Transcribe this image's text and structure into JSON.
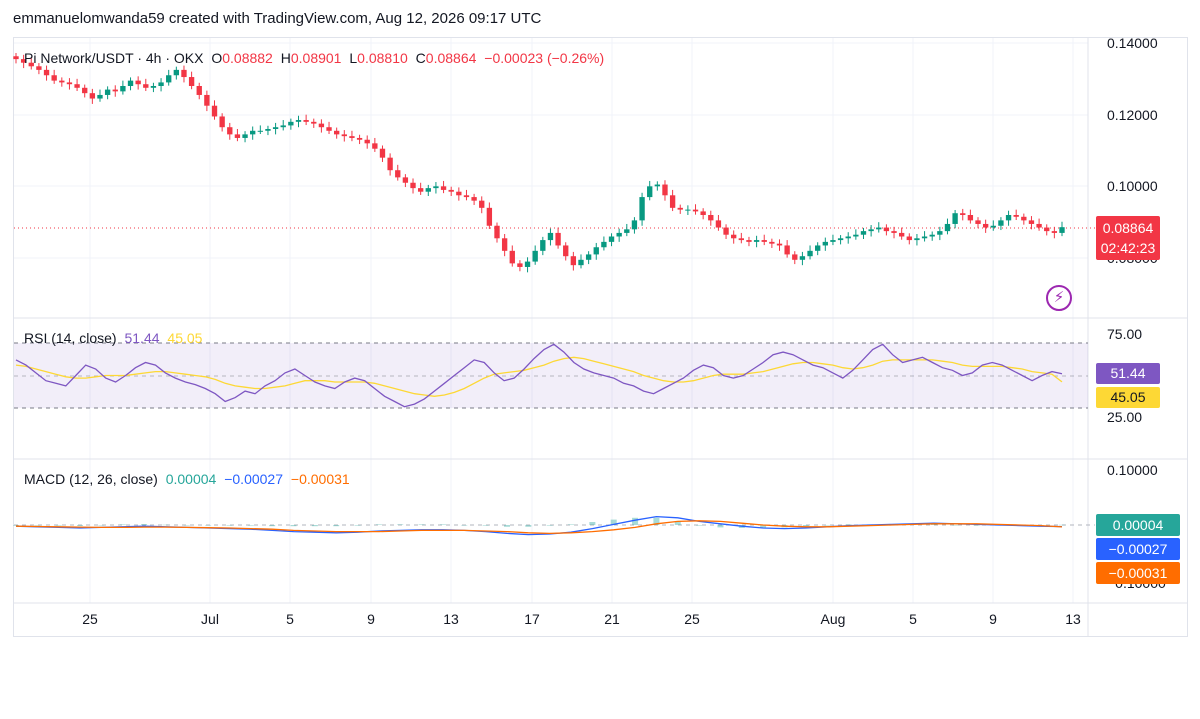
{
  "header": "emmanuelomwanda59 created with TradingView.com, Aug 12, 2026 09:17 UTC",
  "legend_main": {
    "symbol": "Pi Network/USDT · 4h · OKX",
    "o_label": "O",
    "o": "0.08882",
    "h_label": "H",
    "h": "0.08901",
    "l_label": "L",
    "l": "0.08810",
    "c_label": "C",
    "c": "0.08864",
    "change": "−0.00023 (−0.26%)"
  },
  "legend_rsi": {
    "label": "RSI (14, close)",
    "rsi": "51.44",
    "ma": "45.05"
  },
  "legend_macd": {
    "label": "MACD (12, 26, close)",
    "hist": "0.00004",
    "macd": "−0.00027",
    "signal": "−0.00031"
  },
  "price_tag": {
    "price": "0.08864",
    "countdown": "02:42:23"
  },
  "rsi_tags": {
    "rsi": "51.44",
    "ma": "45.05"
  },
  "macd_tags": {
    "hist": "0.00004",
    "macd": "−0.00027",
    "signal": "−0.00031"
  },
  "price_axis": [
    "0.14000",
    "0.12000",
    "0.10000",
    "0.08000"
  ],
  "rsi_axis": [
    "75.00",
    "25.00"
  ],
  "macd_axis": [
    "0.10000",
    "−0.10000"
  ],
  "x_axis": [
    "25",
    "Jul",
    "5",
    "9",
    "13",
    "17",
    "21",
    "25",
    "Aug",
    "5",
    "9",
    "13"
  ],
  "icons": {
    "alert": "lightning-icon"
  },
  "colors": {
    "up": "#089981",
    "down": "#f23645",
    "rsi": "#7e57c2",
    "rsi_ma": "#fdd835",
    "macd": "#2962ff",
    "signal": "#ff6d00",
    "hist": "#26a69a"
  },
  "chart_data": [
    {
      "type": "candlestick",
      "title": "Pi Network/USDT · 4h · OKX",
      "ylim": [
        0.074,
        0.141
      ],
      "x": [
        "25",
        "Jul",
        "5",
        "9",
        "13",
        "17",
        "21",
        "25",
        "Aug",
        "5",
        "9",
        "13"
      ],
      "close_series": [
        0.1355,
        0.1345,
        0.1335,
        0.1325,
        0.131,
        0.1295,
        0.129,
        0.1285,
        0.1275,
        0.126,
        0.1245,
        0.1255,
        0.127,
        0.1265,
        0.128,
        0.1295,
        0.1285,
        0.1275,
        0.128,
        0.129,
        0.131,
        0.1325,
        0.1305,
        0.128,
        0.1255,
        0.1225,
        0.1195,
        0.1165,
        0.1145,
        0.1135,
        0.1145,
        0.1155,
        0.1155,
        0.116,
        0.1165,
        0.117,
        0.118,
        0.1185,
        0.118,
        0.1175,
        0.1165,
        0.1155,
        0.1145,
        0.114,
        0.1135,
        0.113,
        0.112,
        0.1105,
        0.108,
        0.1045,
        0.1025,
        0.101,
        0.0995,
        0.0985,
        0.0995,
        0.1,
        0.099,
        0.0985,
        0.0975,
        0.097,
        0.096,
        0.094,
        0.089,
        0.0855,
        0.082,
        0.0785,
        0.0775,
        0.079,
        0.082,
        0.085,
        0.087,
        0.0835,
        0.0805,
        0.078,
        0.0795,
        0.081,
        0.083,
        0.0845,
        0.086,
        0.087,
        0.088,
        0.0905,
        0.097,
        0.1,
        0.1005,
        0.0975,
        0.094,
        0.0935,
        0.0935,
        0.093,
        0.092,
        0.0905,
        0.0885,
        0.0865,
        0.0855,
        0.085,
        0.0845,
        0.085,
        0.0845,
        0.084,
        0.0835,
        0.081,
        0.0795,
        0.0805,
        0.082,
        0.0835,
        0.0845,
        0.085,
        0.0855,
        0.086,
        0.0865,
        0.0875,
        0.088,
        0.0885,
        0.0875,
        0.087,
        0.086,
        0.085,
        0.0855,
        0.086,
        0.0865,
        0.0875,
        0.0895,
        0.0925,
        0.092,
        0.0905,
        0.0895,
        0.0885,
        0.089,
        0.0905,
        0.092,
        0.0915,
        0.0905,
        0.0895,
        0.0885,
        0.0875,
        0.087,
        0.0886
      ]
    },
    {
      "type": "line",
      "title": "RSI (14, close)",
      "ylim": [
        0,
        100
      ],
      "series": [
        {
          "name": "RSI",
          "values": [
            62,
            58,
            52,
            46,
            44,
            42,
            50,
            58,
            55,
            48,
            45,
            50,
            56,
            60,
            58,
            52,
            48,
            45,
            43,
            40,
            36,
            30,
            33,
            38,
            36,
            42,
            46,
            52,
            55,
            50,
            45,
            42,
            40,
            45,
            48,
            46,
            40,
            34,
            30,
            26,
            28,
            32,
            38,
            44,
            50,
            56,
            62,
            60,
            52,
            46,
            48,
            55,
            63,
            70,
            74,
            68,
            60,
            55,
            52,
            50,
            48,
            44,
            42,
            38,
            36,
            40,
            44,
            48,
            54,
            58,
            56,
            50,
            48,
            50,
            55,
            60,
            66,
            68,
            66,
            62,
            58,
            56,
            52,
            48,
            54,
            62,
            70,
            74,
            66,
            60,
            62,
            64,
            60,
            56,
            54,
            50,
            52,
            58,
            60,
            58,
            54,
            50,
            46,
            50,
            53,
            51.4
          ]
        },
        {
          "name": "MA",
          "values": [
            58,
            57,
            55,
            53,
            51,
            49,
            48,
            48,
            49,
            50,
            50,
            50,
            51,
            52,
            53,
            53,
            52,
            51,
            50,
            49,
            47,
            44,
            42,
            41,
            40,
            40,
            41,
            42,
            44,
            46,
            46,
            46,
            45,
            45,
            45,
            45,
            44,
            42,
            40,
            38,
            36,
            35,
            34,
            35,
            37,
            40,
            44,
            48,
            51,
            52,
            53,
            54,
            56,
            58,
            61,
            63,
            64,
            63,
            61,
            59,
            57,
            55,
            53,
            50,
            48,
            46,
            45,
            45,
            46,
            48,
            50,
            51,
            51,
            51,
            52,
            53,
            55,
            57,
            59,
            60,
            60,
            59,
            58,
            56,
            55,
            56,
            58,
            61,
            62,
            62,
            62,
            62,
            62,
            61,
            60,
            58,
            57,
            57,
            57,
            57,
            56,
            55,
            53,
            52,
            51,
            45.05
          ]
        }
      ]
    },
    {
      "type": "line",
      "title": "MACD (12, 26, close)",
      "series": [
        {
          "name": "MACD",
          "values": [
            -0.0002,
            -0.0003,
            -0.0004,
            -0.0005,
            -0.0004,
            -0.0003,
            -0.0002,
            -0.0003,
            -0.0004,
            -0.0005,
            -0.0006,
            -0.0007,
            -0.0009,
            -0.0011,
            -0.0012,
            -0.0013,
            -0.0012,
            -0.001,
            -0.0009,
            -0.0008,
            -0.0008,
            -0.0009,
            -0.0011,
            -0.0014,
            -0.0016,
            -0.0015,
            -0.0012,
            -0.0006,
            0.0001,
            0.0008,
            0.0014,
            0.0012,
            0.0006,
            0.0002,
            -0.0002,
            -0.0005,
            -0.0006,
            -0.0005,
            -0.0003,
            -0.0001,
            0,
            0.0001,
            0.0002,
            0.0003,
            0.0002,
            0.0001,
            0,
            -0.0001,
            -0.0002,
            -0.00027
          ]
        },
        {
          "name": "Signal",
          "values": [
            -0.0002,
            -0.00025,
            -0.0003,
            -0.00035,
            -0.0004,
            -0.0004,
            -0.00035,
            -0.00035,
            -0.0004,
            -0.00045,
            -0.0005,
            -0.0006,
            -0.0007,
            -0.0009,
            -0.001,
            -0.0011,
            -0.0011,
            -0.0011,
            -0.001,
            -0.0009,
            -0.0009,
            -0.0009,
            -0.001,
            -0.0011,
            -0.0013,
            -0.0014,
            -0.0013,
            -0.0011,
            -0.0008,
            -0.0004,
            0.0002,
            0.0006,
            0.0007,
            0.0006,
            0.0003,
            0,
            -0.0002,
            -0.0003,
            -0.0003,
            -0.0002,
            -0.0001,
            0,
            0.0001,
            0.0002,
            0.0002,
            0.0002,
            0.0001,
            0,
            -0.0001,
            -0.00031
          ]
        }
      ]
    }
  ]
}
